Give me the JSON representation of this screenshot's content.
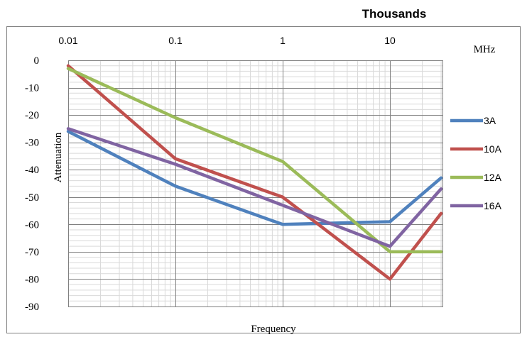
{
  "chart_data": {
    "type": "line",
    "title": "",
    "x_scale": "log",
    "x_unit_note": "Thousands",
    "x_unit": "MHz",
    "xlabel": "Frequency",
    "ylabel": "Attenuation",
    "xlim": [
      0.01,
      30
    ],
    "ylim": [
      -90,
      0
    ],
    "x_ticks": [
      0.01,
      0.1,
      1,
      10
    ],
    "x_tick_labels": [
      "0.01",
      "0.1",
      "1",
      "10"
    ],
    "y_ticks": [
      0,
      -10,
      -20,
      -30,
      -40,
      -50,
      -60,
      -70,
      -80,
      -90
    ],
    "y_tick_labels": [
      "0",
      "-10",
      "-20",
      "-30",
      "-40",
      "-50",
      "-60",
      "-70",
      "-80",
      "-90"
    ],
    "grid": true,
    "legend_position": "right",
    "x": [
      0.01,
      0.1,
      1,
      10,
      30
    ],
    "series": [
      {
        "name": "3A",
        "color": "#4f81bd",
        "values": [
          -26,
          -46,
          -60,
          -59,
          -43
        ]
      },
      {
        "name": "10A",
        "color": "#c0504d",
        "values": [
          -2,
          -36,
          -50,
          -80,
          -56
        ]
      },
      {
        "name": "12A",
        "color": "#9bbb59",
        "values": [
          -3,
          -21,
          -37,
          -70,
          -70
        ]
      },
      {
        "name": "16A",
        "color": "#8064a2",
        "values": [
          -25,
          -38,
          -53,
          -68,
          -47
        ]
      }
    ]
  }
}
